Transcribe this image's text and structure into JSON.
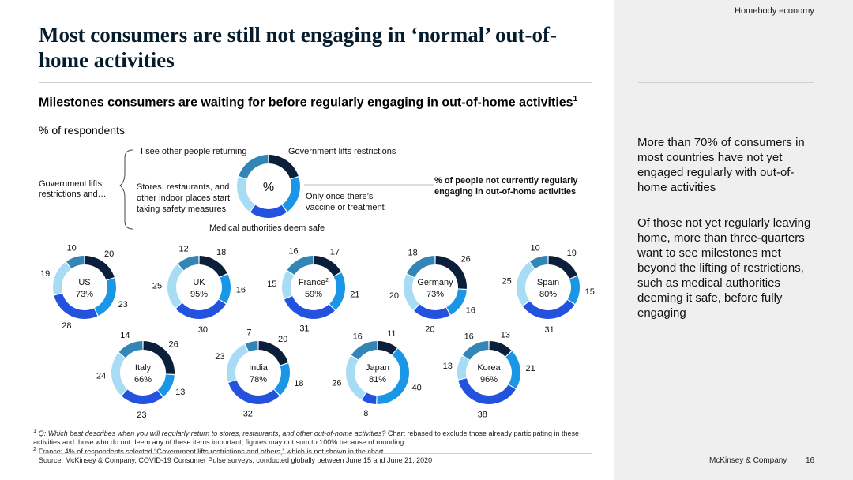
{
  "section_tag": "Homebody economy",
  "title": "Most consumers are still not engaging in ‘normal’ out-of-home activities",
  "subtitle": "Milestones consumers are waiting for before regularly engaging in out-of-home activities",
  "subtitle_sup": "1",
  "units": "% of respondents",
  "legend": {
    "center": "%",
    "prefix": "Government lifts restrictions and…",
    "items": {
      "others_returning": "I see other people returning",
      "gov_lifts": "Government lifts restrictions",
      "vaccine": "Only once there’s vaccine or treatment",
      "medical": "Medical authorities deem safe",
      "stores": "Stores, restaurants, and other indoor places start taking safety measures"
    },
    "center_note": "% of people not currently regularly engaging in out-of-home activities"
  },
  "colors": {
    "others_returning": "#0b1e3a",
    "vaccine": "#1996e6",
    "medical": "#2352de",
    "stores": "#a8dcf4",
    "gov_lifts": "#3385b5",
    "sidebar": "#efefef"
  },
  "chart_data": {
    "type": "donut",
    "segment_order": [
      "others_returning",
      "vaccine",
      "medical",
      "stores",
      "gov_lifts"
    ],
    "series_names": [
      "I see other people returning",
      "Only once there’s vaccine or treatment",
      "Medical authorities deem safe",
      "Stores, restaurants, and other indoor places start taking safety measures",
      "Government lifts restrictions"
    ],
    "countries": [
      {
        "name": "US",
        "sup": "",
        "pct": "73%",
        "values": [
          20,
          23,
          28,
          19,
          10
        ]
      },
      {
        "name": "UK",
        "sup": "",
        "pct": "95%",
        "values": [
          18,
          16,
          30,
          25,
          12
        ]
      },
      {
        "name": "France",
        "sup": "2",
        "pct": "59%",
        "values": [
          17,
          21,
          31,
          15,
          16
        ]
      },
      {
        "name": "Germany",
        "sup": "",
        "pct": "73%",
        "values": [
          26,
          16,
          20,
          20,
          18
        ]
      },
      {
        "name": "Spain",
        "sup": "",
        "pct": "80%",
        "values": [
          19,
          15,
          31,
          25,
          10
        ]
      },
      {
        "name": "Italy",
        "sup": "",
        "pct": "66%",
        "values": [
          26,
          13,
          23,
          24,
          14
        ]
      },
      {
        "name": "India",
        "sup": "",
        "pct": "78%",
        "values": [
          20,
          18,
          32,
          23,
          7
        ]
      },
      {
        "name": "Japan",
        "sup": "",
        "pct": "81%",
        "values": [
          11,
          40,
          8,
          26,
          16
        ]
      },
      {
        "name": "Korea",
        "sup": "",
        "pct": "96%",
        "values": [
          13,
          21,
          38,
          13,
          16
        ]
      }
    ]
  },
  "sidebar": {
    "p1": "More than 70% of consumers in most countries have not yet engaged regularly with out-of-home activities",
    "p2": "Of those not yet regularly leaving home, more than three-quarters want to see milestones met beyond the lifting of restrictions, such as medical authorities deeming it safe, before fully engaging"
  },
  "footnotes": {
    "fn1_mark": "1",
    "fn1_q": "Q: Which best describes when you will regularly return to stores, restaurants, and other out-of-home activities?",
    "fn1_rest": " Chart rebased to exclude those already participating in these activities and those who do not deem any of these items important; figures may not sum to 100% because of rounding.",
    "fn2_mark": "2",
    "fn2": "France: 4% of respondents selected “Government lifts restrictions and others,” which is not shown in the chart.",
    "source": "Source: McKinsey & Company, COVID-19 Consumer Pulse surveys, conducted globally between June 15 and June 21, 2020"
  },
  "footer": {
    "brand": "McKinsey & Company",
    "page": "16"
  }
}
